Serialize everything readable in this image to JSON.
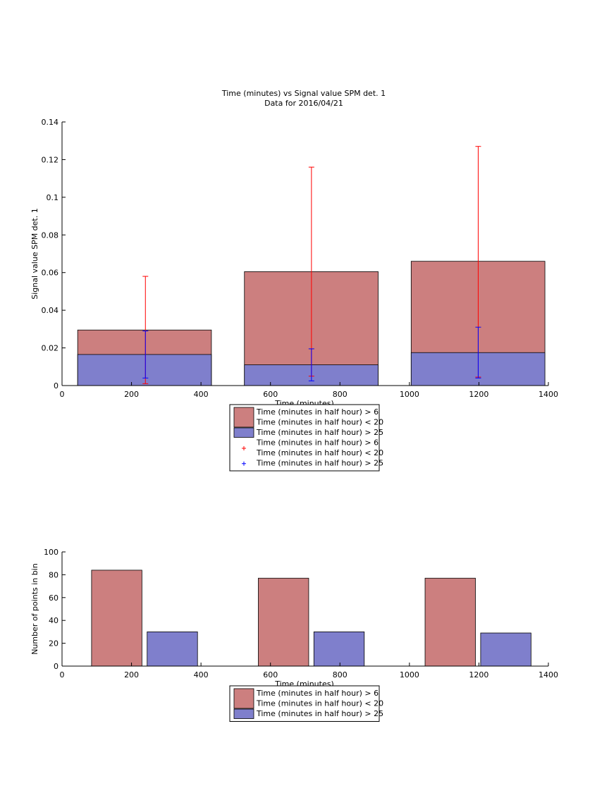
{
  "figure": {
    "title": "Time (minutes) vs Signal value SPM det. 1",
    "subtitle": "Data for 2016/04/21"
  },
  "colors": {
    "series_red": "#cc7f7f",
    "series_blue": "#7f7fcc",
    "errorbar_red": "#ff0000",
    "errorbar_blue": "#0000ff"
  },
  "chart_data": [
    {
      "type": "bar",
      "title": "Time (minutes) vs Signal value SPM det. 1",
      "subtitle": "Data for 2016/04/21",
      "xlabel": "Time (minutes)",
      "ylabel": "Signal value SPM det. 1",
      "xlim": [
        0,
        1400
      ],
      "ylim": [
        0,
        0.14
      ],
      "xticks": [
        "0",
        "200",
        "400",
        "600",
        "800",
        "1000",
        "1200",
        "1400"
      ],
      "yticks": [
        "0",
        "0.02",
        "0.04",
        "0.06",
        "0.08",
        "0.1",
        "0.12",
        "0.14"
      ],
      "grid": false,
      "legend_position": "below",
      "bins": [
        {
          "x_from": 45,
          "x_to": 430
        },
        {
          "x_from": 525,
          "x_to": 910
        },
        {
          "x_from": 1005,
          "x_to": 1390
        }
      ],
      "series": [
        {
          "name": "Time (minutes in half hour) > 6\nTime (minutes in half hour) < 20",
          "values": [
            0.0295,
            0.0605,
            0.066
          ],
          "errorbars": {
            "x": [
              240,
              718,
              1198
            ],
            "lower": [
              0.001,
              0.005,
              0.0045
            ],
            "upper": [
              0.058,
              0.116,
              0.127
            ]
          }
        },
        {
          "name": "Time (minutes in half hour) > 25",
          "values": [
            0.0165,
            0.011,
            0.0175
          ],
          "errorbars": {
            "x": [
              240,
              718,
              1198
            ],
            "lower": [
              0.004,
              0.0025,
              0.004
            ],
            "upper": [
              0.029,
              0.0195,
              0.031
            ]
          }
        }
      ],
      "legend": [
        {
          "kind": "patch",
          "series": 0,
          "lines": [
            "Time (minutes in half hour) > 6",
            "Time (minutes in half hour) < 20"
          ]
        },
        {
          "kind": "patch",
          "series": 1,
          "lines": [
            "Time (minutes in half hour) > 25"
          ]
        },
        {
          "kind": "marker",
          "series": 0,
          "lines": [
            "Time (minutes in half hour) > 6",
            "Time (minutes in half hour) < 20"
          ]
        },
        {
          "kind": "marker",
          "series": 1,
          "lines": [
            "Time (minutes in half hour) > 25"
          ]
        }
      ]
    },
    {
      "type": "bar",
      "xlabel": "Time (minutes)",
      "ylabel": "Number of points in bin",
      "xlim": [
        0,
        1400
      ],
      "ylim": [
        0,
        100
      ],
      "xticks": [
        "0",
        "200",
        "400",
        "600",
        "800",
        "1000",
        "1200",
        "1400"
      ],
      "yticks": [
        "0",
        "20",
        "40",
        "60",
        "80",
        "100"
      ],
      "grid": false,
      "legend_position": "below",
      "series": [
        {
          "name": "Time (minutes in half hour) > 6\nTime (minutes in half hour) < 20",
          "bars": [
            {
              "x_from": 85,
              "x_to": 230,
              "value": 84
            },
            {
              "x_from": 565,
              "x_to": 710,
              "value": 77
            },
            {
              "x_from": 1045,
              "x_to": 1190,
              "value": 77
            }
          ]
        },
        {
          "name": "Time (minutes in half hour) > 25",
          "bars": [
            {
              "x_from": 245,
              "x_to": 390,
              "value": 30
            },
            {
              "x_from": 725,
              "x_to": 870,
              "value": 30
            },
            {
              "x_from": 1205,
              "x_to": 1350,
              "value": 29
            }
          ]
        }
      ],
      "legend": [
        {
          "kind": "patch",
          "series": 0,
          "lines": [
            "Time (minutes in half hour) > 6",
            "Time (minutes in half hour) < 20"
          ]
        },
        {
          "kind": "patch",
          "series": 1,
          "lines": [
            "Time (minutes in half hour) > 25"
          ]
        }
      ]
    }
  ]
}
